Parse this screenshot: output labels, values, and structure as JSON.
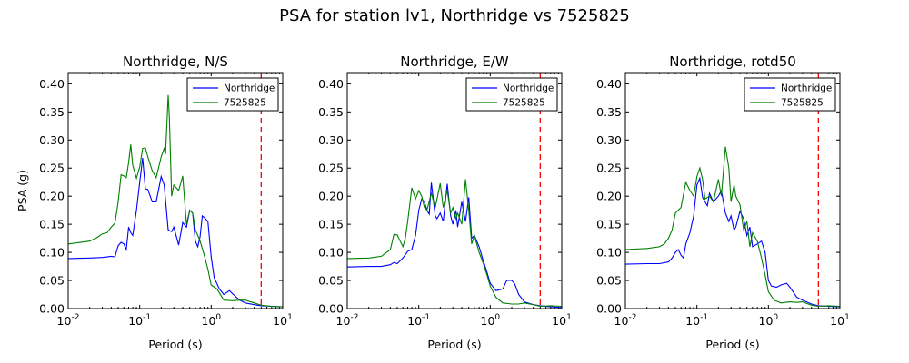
{
  "figure": {
    "suptitle": "PSA for station lv1, Northridge vs 7525825"
  },
  "colors": {
    "northridge": "#0000ff",
    "synthetic": "#008000",
    "cutoff": "#ff0000"
  },
  "chart_data": [
    {
      "type": "line",
      "title": "Northridge, N/S",
      "xlabel": "Period (s)",
      "ylabel": "PSA (g)",
      "xscale": "log",
      "xlim": [
        0.01,
        10
      ],
      "ylim": [
        0,
        0.42
      ],
      "xticks": [
        {
          "v": 0.01,
          "b": "10",
          "e": "-2"
        },
        {
          "v": 0.1,
          "b": "10",
          "e": "-1"
        },
        {
          "v": 1,
          "b": "10",
          "e": "0"
        },
        {
          "v": 10,
          "b": "10",
          "e": "1"
        }
      ],
      "yticks": [
        "0.00",
        "0.05",
        "0.10",
        "0.15",
        "0.20",
        "0.25",
        "0.30",
        "0.35",
        "0.40"
      ],
      "legend_position": "top-right",
      "cutoff_period": 5,
      "series": [
        {
          "name": "Northridge",
          "color": "#0000ff",
          "x": [
            0.01,
            0.02,
            0.03,
            0.04,
            0.045,
            0.05,
            0.055,
            0.06,
            0.065,
            0.07,
            0.075,
            0.08,
            0.09,
            0.1,
            0.11,
            0.12,
            0.13,
            0.15,
            0.17,
            0.2,
            0.22,
            0.25,
            0.28,
            0.3,
            0.35,
            0.4,
            0.45,
            0.5,
            0.55,
            0.6,
            0.65,
            0.7,
            0.75,
            0.8,
            0.9,
            1.0,
            1.1,
            1.3,
            1.5,
            1.8,
            2.0,
            2.5,
            3.0,
            4.0,
            5.0,
            7.0,
            10.0
          ],
          "y": [
            0.089,
            0.09,
            0.091,
            0.093,
            0.092,
            0.112,
            0.118,
            0.115,
            0.105,
            0.145,
            0.135,
            0.13,
            0.175,
            0.225,
            0.268,
            0.213,
            0.212,
            0.19,
            0.19,
            0.235,
            0.22,
            0.14,
            0.137,
            0.145,
            0.113,
            0.153,
            0.145,
            0.175,
            0.17,
            0.12,
            0.11,
            0.128,
            0.165,
            0.162,
            0.155,
            0.092,
            0.055,
            0.035,
            0.025,
            0.032,
            0.026,
            0.015,
            0.01,
            0.007,
            0.005,
            0.004,
            0.003
          ]
        },
        {
          "name": "7525825",
          "color": "#008000",
          "x": [
            0.01,
            0.02,
            0.025,
            0.03,
            0.035,
            0.04,
            0.045,
            0.05,
            0.055,
            0.06,
            0.065,
            0.07,
            0.075,
            0.08,
            0.09,
            0.1,
            0.11,
            0.12,
            0.13,
            0.15,
            0.17,
            0.2,
            0.22,
            0.23,
            0.25,
            0.26,
            0.28,
            0.3,
            0.35,
            0.4,
            0.45,
            0.5,
            0.55,
            0.6,
            0.65,
            0.7,
            0.8,
            0.9,
            1.0,
            1.2,
            1.5,
            2.0,
            2.5,
            3.0,
            4.0,
            5.0,
            7.0,
            10.0
          ],
          "y": [
            0.115,
            0.12,
            0.126,
            0.133,
            0.135,
            0.145,
            0.152,
            0.19,
            0.238,
            0.236,
            0.233,
            0.26,
            0.292,
            0.255,
            0.232,
            0.252,
            0.285,
            0.286,
            0.27,
            0.245,
            0.233,
            0.27,
            0.285,
            0.275,
            0.38,
            0.34,
            0.2,
            0.22,
            0.21,
            0.236,
            0.15,
            0.175,
            0.17,
            0.14,
            0.13,
            0.12,
            0.095,
            0.07,
            0.042,
            0.035,
            0.015,
            0.014,
            0.015,
            0.015,
            0.01,
            0.006,
            0.004,
            0.003
          ]
        }
      ]
    },
    {
      "type": "line",
      "title": "Northridge, E/W",
      "xlabel": "Period (s)",
      "ylabel": "",
      "xscale": "log",
      "xlim": [
        0.01,
        10
      ],
      "ylim": [
        0,
        0.42
      ],
      "xticks": [
        {
          "v": 0.01,
          "b": "10",
          "e": "-2"
        },
        {
          "v": 0.1,
          "b": "10",
          "e": "-1"
        },
        {
          "v": 1,
          "b": "10",
          "e": "0"
        },
        {
          "v": 10,
          "b": "10",
          "e": "1"
        }
      ],
      "yticks": [
        "0.00",
        "0.05",
        "0.10",
        "0.15",
        "0.20",
        "0.25",
        "0.30",
        "0.35",
        "0.40"
      ],
      "legend_position": "top-right",
      "cutoff_period": 5,
      "series": [
        {
          "name": "Northridge",
          "color": "#0000ff",
          "x": [
            0.01,
            0.02,
            0.03,
            0.04,
            0.045,
            0.05,
            0.06,
            0.07,
            0.08,
            0.09,
            0.1,
            0.11,
            0.12,
            0.13,
            0.14,
            0.15,
            0.17,
            0.18,
            0.2,
            0.22,
            0.25,
            0.28,
            0.3,
            0.33,
            0.35,
            0.4,
            0.45,
            0.5,
            0.55,
            0.6,
            0.7,
            0.8,
            0.9,
            1.0,
            1.2,
            1.5,
            1.7,
            2.0,
            2.2,
            2.5,
            3.0,
            4.0,
            5.0,
            7.0,
            10.0
          ],
          "y": [
            0.074,
            0.075,
            0.075,
            0.078,
            0.082,
            0.08,
            0.09,
            0.102,
            0.105,
            0.13,
            0.175,
            0.195,
            0.19,
            0.175,
            0.168,
            0.224,
            0.165,
            0.16,
            0.17,
            0.155,
            0.222,
            0.165,
            0.15,
            0.175,
            0.145,
            0.19,
            0.155,
            0.198,
            0.125,
            0.13,
            0.11,
            0.085,
            0.065,
            0.045,
            0.032,
            0.035,
            0.05,
            0.05,
            0.044,
            0.025,
            0.012,
            0.007,
            0.005,
            0.003,
            0.002
          ]
        },
        {
          "name": "7525825",
          "color": "#008000",
          "x": [
            0.01,
            0.02,
            0.03,
            0.04,
            0.045,
            0.05,
            0.055,
            0.06,
            0.065,
            0.07,
            0.08,
            0.09,
            0.1,
            0.11,
            0.12,
            0.13,
            0.15,
            0.17,
            0.2,
            0.22,
            0.25,
            0.28,
            0.3,
            0.33,
            0.35,
            0.4,
            0.45,
            0.5,
            0.55,
            0.6,
            0.7,
            0.8,
            0.9,
            1.0,
            1.2,
            1.5,
            2.0,
            2.5,
            3.0,
            4.0,
            5.0,
            7.0,
            10.0
          ],
          "y": [
            0.089,
            0.09,
            0.093,
            0.105,
            0.132,
            0.131,
            0.12,
            0.11,
            0.125,
            0.155,
            0.215,
            0.195,
            0.21,
            0.2,
            0.18,
            0.175,
            0.205,
            0.18,
            0.223,
            0.18,
            0.21,
            0.17,
            0.18,
            0.16,
            0.17,
            0.15,
            0.23,
            0.175,
            0.115,
            0.13,
            0.1,
            0.08,
            0.06,
            0.04,
            0.02,
            0.01,
            0.008,
            0.008,
            0.01,
            0.007,
            0.004,
            0.005,
            0.004
          ]
        }
      ]
    },
    {
      "type": "line",
      "title": "Northridge, rotd50",
      "xlabel": "Period (s)",
      "ylabel": "",
      "xscale": "log",
      "xlim": [
        0.01,
        10
      ],
      "ylim": [
        0,
        0.42
      ],
      "xticks": [
        {
          "v": 0.01,
          "b": "10",
          "e": "-2"
        },
        {
          "v": 0.1,
          "b": "10",
          "e": "-1"
        },
        {
          "v": 1,
          "b": "10",
          "e": "0"
        },
        {
          "v": 10,
          "b": "10",
          "e": "1"
        }
      ],
      "yticks": [
        "0.00",
        "0.05",
        "0.10",
        "0.15",
        "0.20",
        "0.25",
        "0.30",
        "0.35",
        "0.40"
      ],
      "legend_position": "top-right",
      "cutoff_period": 5,
      "series": [
        {
          "name": "Northridge",
          "color": "#0000ff",
          "x": [
            0.01,
            0.02,
            0.03,
            0.04,
            0.045,
            0.05,
            0.055,
            0.06,
            0.065,
            0.07,
            0.08,
            0.09,
            0.1,
            0.11,
            0.12,
            0.13,
            0.14,
            0.15,
            0.17,
            0.2,
            0.22,
            0.25,
            0.28,
            0.3,
            0.33,
            0.35,
            0.4,
            0.45,
            0.5,
            0.55,
            0.6,
            0.7,
            0.8,
            0.9,
            1.0,
            1.1,
            1.3,
            1.5,
            1.8,
            2.0,
            2.5,
            3.0,
            4.0,
            5.0,
            7.0,
            10.0
          ],
          "y": [
            0.079,
            0.08,
            0.08,
            0.083,
            0.09,
            0.1,
            0.105,
            0.095,
            0.09,
            0.115,
            0.135,
            0.165,
            0.22,
            0.232,
            0.198,
            0.19,
            0.183,
            0.205,
            0.19,
            0.2,
            0.21,
            0.17,
            0.155,
            0.165,
            0.14,
            0.145,
            0.173,
            0.16,
            0.13,
            0.145,
            0.11,
            0.115,
            0.12,
            0.1,
            0.05,
            0.04,
            0.038,
            0.042,
            0.045,
            0.038,
            0.02,
            0.015,
            0.008,
            0.005,
            0.004,
            0.003
          ]
        },
        {
          "name": "7525825",
          "color": "#008000",
          "x": [
            0.01,
            0.02,
            0.03,
            0.035,
            0.04,
            0.045,
            0.05,
            0.06,
            0.07,
            0.08,
            0.09,
            0.1,
            0.11,
            0.12,
            0.13,
            0.15,
            0.17,
            0.2,
            0.22,
            0.25,
            0.28,
            0.3,
            0.33,
            0.35,
            0.4,
            0.45,
            0.5,
            0.55,
            0.6,
            0.7,
            0.8,
            0.9,
            1.0,
            1.2,
            1.5,
            2.0,
            2.5,
            3.0,
            4.0,
            5.0,
            7.0,
            10.0
          ],
          "y": [
            0.105,
            0.107,
            0.11,
            0.115,
            0.125,
            0.14,
            0.17,
            0.18,
            0.225,
            0.21,
            0.2,
            0.235,
            0.25,
            0.23,
            0.195,
            0.2,
            0.19,
            0.23,
            0.2,
            0.288,
            0.25,
            0.19,
            0.22,
            0.2,
            0.185,
            0.14,
            0.155,
            0.11,
            0.135,
            0.12,
            0.09,
            0.06,
            0.03,
            0.015,
            0.01,
            0.012,
            0.011,
            0.012,
            0.006,
            0.004,
            0.005,
            0.004
          ]
        }
      ]
    }
  ]
}
